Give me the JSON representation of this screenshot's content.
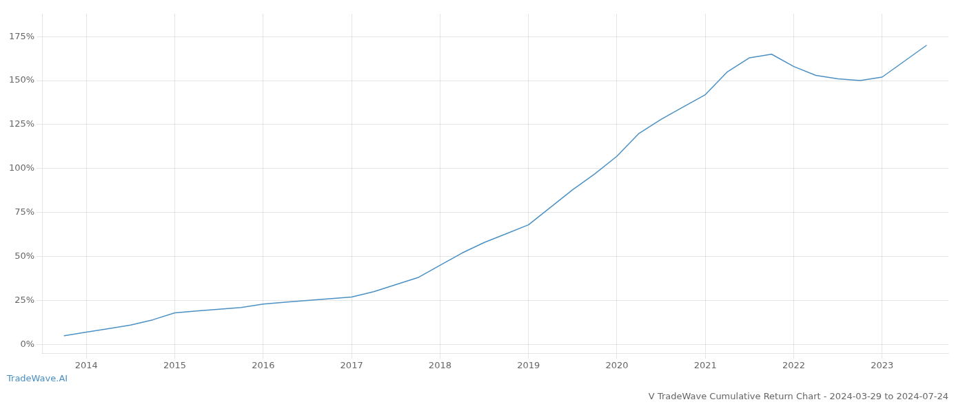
{
  "chart_data": {
    "type": "line",
    "title": "V TradeWave Cumulative Return Chart - 2024-03-29 to 2024-07-24",
    "annotations": [
      "TradeWave.AI"
    ],
    "x": [
      2013.75,
      2014.0,
      2014.25,
      2014.5,
      2014.75,
      2015.0,
      2015.25,
      2015.5,
      2015.75,
      2016.0,
      2016.25,
      2016.5,
      2016.75,
      2017.0,
      2017.25,
      2017.5,
      2017.75,
      2018.0,
      2018.25,
      2018.5,
      2018.75,
      2019.0,
      2019.25,
      2019.5,
      2019.75,
      2020.0,
      2020.25,
      2020.5,
      2020.75,
      2021.0,
      2021.25,
      2021.5,
      2021.75,
      2022.0,
      2022.25,
      2022.5,
      2022.75,
      2023.0,
      2023.25,
      2023.5
    ],
    "values": [
      5,
      7,
      9,
      11,
      14,
      18,
      19,
      20,
      21,
      23,
      24,
      25,
      26,
      27,
      30,
      34,
      38,
      45,
      52,
      58,
      63,
      68,
      78,
      88,
      97,
      107,
      120,
      128,
      135,
      142,
      155,
      163,
      165,
      158,
      153,
      151,
      150,
      152,
      161,
      170
    ],
    "color": "#4a90c4",
    "xlim": [
      2013.5,
      2023.75
    ],
    "xticks": [
      2014,
      2015,
      2016,
      2017,
      2018,
      2019,
      2020,
      2021,
      2022,
      2023
    ],
    "ylim": [
      -5,
      188
    ],
    "yticks": [
      {
        "value": 0,
        "label": "0%"
      },
      {
        "value": 25,
        "label": "25%"
      },
      {
        "value": 50,
        "label": "50%"
      },
      {
        "value": 75,
        "label": "75%"
      },
      {
        "value": 100,
        "label": "100%"
      },
      {
        "value": 125,
        "label": "125%"
      },
      {
        "value": 150,
        "label": "150%"
      },
      {
        "value": 175,
        "label": "175%"
      }
    ],
    "grid": true
  }
}
